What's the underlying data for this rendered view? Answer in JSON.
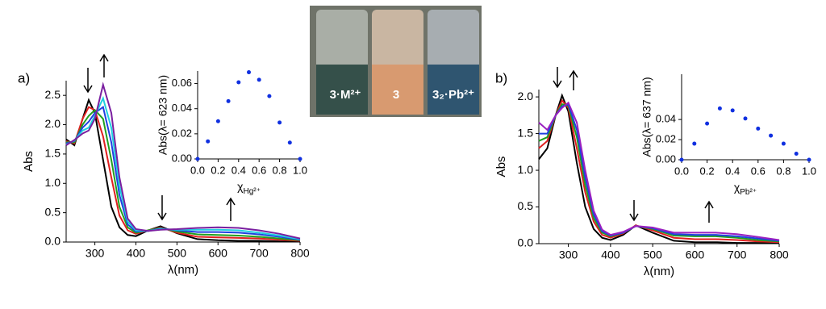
{
  "panel_labels": [
    "a)",
    "b)"
  ],
  "photo": {
    "labels": [
      "3·M²⁺",
      "3",
      "3₂·Pb²⁺"
    ]
  },
  "chart_data": [
    {
      "type": "line",
      "xlabel": "λ(nm)",
      "ylabel": "Abs",
      "x": [
        230,
        250,
        270,
        285,
        300,
        320,
        340,
        360,
        380,
        400,
        430,
        460,
        500,
        550,
        600,
        650,
        700,
        750,
        800
      ],
      "xlim": [
        230,
        800
      ],
      "xticks": [
        300,
        400,
        500,
        600,
        700,
        800
      ],
      "ylim": [
        0,
        2.75
      ],
      "yticks": [
        {
          "value": 0,
          "label": "0.0"
        },
        0.5,
        {
          "value": 1,
          "label": "1.0"
        },
        1.5,
        {
          "value": 2,
          "label": "2.0"
        },
        2.5
      ],
      "series": [
        {
          "color": "#000000",
          "values": [
            1.75,
            1.65,
            2.1,
            2.42,
            2.2,
            1.4,
            0.6,
            0.25,
            0.12,
            0.1,
            0.2,
            0.27,
            0.15,
            0.05,
            0.03,
            0.02,
            0.02,
            0.01,
            0.01
          ]
        },
        {
          "color": "#e02020",
          "values": [
            1.72,
            1.68,
            2.1,
            2.3,
            2.25,
            1.8,
            1.1,
            0.45,
            0.2,
            0.14,
            0.2,
            0.25,
            0.16,
            0.09,
            0.08,
            0.07,
            0.06,
            0.04,
            0.02
          ]
        },
        {
          "color": "#20a020",
          "values": [
            1.7,
            1.7,
            2.0,
            2.15,
            2.25,
            2.1,
            1.4,
            0.6,
            0.25,
            0.16,
            0.2,
            0.24,
            0.18,
            0.13,
            0.12,
            0.11,
            0.09,
            0.06,
            0.03
          ]
        },
        {
          "color": "#2040e0",
          "values": [
            1.68,
            1.72,
            1.95,
            2.05,
            2.2,
            2.3,
            1.7,
            0.8,
            0.3,
            0.18,
            0.19,
            0.23,
            0.2,
            0.17,
            0.17,
            0.16,
            0.13,
            0.09,
            0.04
          ]
        },
        {
          "color": "#20d0e0",
          "values": [
            1.66,
            1.73,
            1.9,
            1.95,
            2.15,
            2.45,
            1.95,
            0.95,
            0.35,
            0.2,
            0.19,
            0.22,
            0.21,
            0.21,
            0.21,
            0.2,
            0.16,
            0.11,
            0.05
          ]
        },
        {
          "color": "#7a1fa0",
          "values": [
            1.65,
            1.74,
            1.85,
            1.9,
            2.1,
            2.68,
            2.2,
            1.1,
            0.4,
            0.22,
            0.19,
            0.21,
            0.22,
            0.24,
            0.25,
            0.24,
            0.2,
            0.14,
            0.06
          ]
        }
      ]
    },
    {
      "type": "scatter",
      "xlabel": "χ",
      "xlabel_sub": "Hg²⁺",
      "ylabel": "Abs(λ= 623 nm)",
      "color": "#1030e0",
      "x": [
        0,
        0.1,
        0.2,
        0.3,
        0.4,
        0.5,
        0.6,
        0.7,
        0.8,
        0.9,
        1.0
      ],
      "values": [
        0,
        0.014,
        0.03,
        0.046,
        0.061,
        0.069,
        0.063,
        0.05,
        0.029,
        0.013,
        0
      ],
      "xlim": [
        0,
        1
      ],
      "xticks": [
        {
          "value": 0,
          "label": "0.0"
        },
        0.2,
        0.4,
        0.6,
        0.8,
        {
          "value": 1,
          "label": "1.0"
        }
      ],
      "ylim": [
        0,
        0.07
      ],
      "yticks": [
        {
          "value": 0,
          "label": "0.00"
        },
        {
          "value": 0.02,
          "label": "0.02"
        },
        {
          "value": 0.04,
          "label": "0.04"
        },
        {
          "value": 0.06,
          "label": "0.06"
        }
      ]
    },
    {
      "type": "line",
      "xlabel": "λ(nm)",
      "ylabel": "Abs",
      "x": [
        230,
        250,
        270,
        285,
        300,
        320,
        340,
        360,
        380,
        400,
        430,
        460,
        500,
        550,
        600,
        650,
        700,
        750,
        800
      ],
      "xlim": [
        230,
        800
      ],
      "xticks": [
        300,
        400,
        500,
        600,
        700,
        800
      ],
      "ylim": [
        0,
        2.1
      ],
      "yticks": [
        {
          "value": 0,
          "label": "0.0"
        },
        0.5,
        {
          "value": 1,
          "label": "1.0"
        },
        1.5,
        {
          "value": 2,
          "label": "2.0"
        }
      ],
      "series": [
        {
          "color": "#000000",
          "values": [
            1.15,
            1.3,
            1.75,
            2.02,
            1.8,
            1.1,
            0.5,
            0.2,
            0.08,
            0.05,
            0.12,
            0.25,
            0.15,
            0.04,
            0.02,
            0.02,
            0.01,
            0.01,
            0.01
          ]
        },
        {
          "color": "#e02020",
          "values": [
            1.3,
            1.4,
            1.75,
            1.95,
            1.85,
            1.3,
            0.7,
            0.3,
            0.12,
            0.08,
            0.14,
            0.25,
            0.18,
            0.08,
            0.06,
            0.06,
            0.05,
            0.03,
            0.02
          ]
        },
        {
          "color": "#20a020",
          "values": [
            1.4,
            1.45,
            1.75,
            1.9,
            1.88,
            1.45,
            0.8,
            0.35,
            0.15,
            0.1,
            0.15,
            0.24,
            0.2,
            0.11,
            0.1,
            0.1,
            0.08,
            0.05,
            0.03
          ]
        },
        {
          "color": "#2040e0",
          "values": [
            1.5,
            1.5,
            1.75,
            1.87,
            1.9,
            1.55,
            0.9,
            0.4,
            0.17,
            0.11,
            0.15,
            0.24,
            0.21,
            0.13,
            0.12,
            0.12,
            0.1,
            0.07,
            0.04
          ]
        },
        {
          "color": "#9a20c0",
          "values": [
            1.65,
            1.55,
            1.75,
            1.85,
            1.92,
            1.65,
            1.0,
            0.45,
            0.19,
            0.12,
            0.16,
            0.24,
            0.22,
            0.15,
            0.15,
            0.15,
            0.13,
            0.09,
            0.05
          ]
        }
      ]
    },
    {
      "type": "scatter",
      "xlabel": "χ",
      "xlabel_sub": "Pb²⁺",
      "ylabel": "Abs(λ= 637 nm)",
      "color": "#1030e0",
      "x": [
        0,
        0.1,
        0.2,
        0.3,
        0.4,
        0.5,
        0.6,
        0.7,
        0.8,
        0.9,
        1.0
      ],
      "values": [
        0,
        0.016,
        0.036,
        0.051,
        0.049,
        0.041,
        0.031,
        0.024,
        0.016,
        0.006,
        0
      ],
      "xlim": [
        0,
        1
      ],
      "xticks": [
        {
          "value": 0,
          "label": "0.0"
        },
        0.2,
        0.4,
        0.6,
        0.8,
        {
          "value": 1,
          "label": "1.0"
        }
      ],
      "ylim": [
        0,
        0.085
      ],
      "yticks": [
        {
          "value": 0,
          "label": "0.00"
        },
        {
          "value": 0.02,
          "label": "0.02"
        },
        {
          "value": 0.04,
          "label": "0.04"
        }
      ]
    }
  ]
}
